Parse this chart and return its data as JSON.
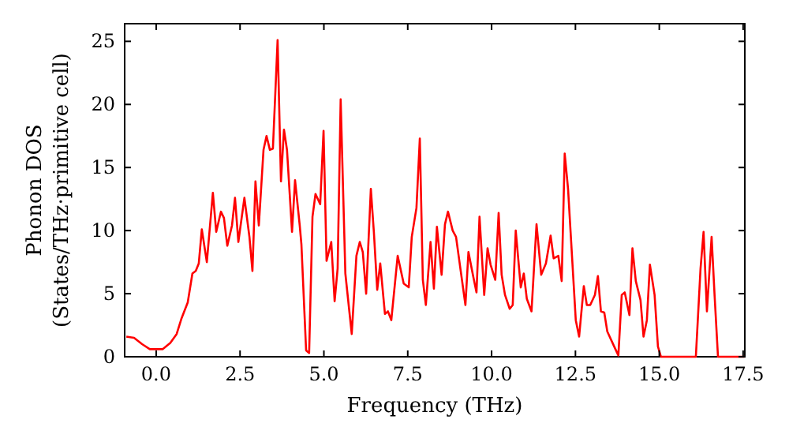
{
  "chart_data": {
    "type": "line",
    "xlabel": "Frequency (THz)",
    "ylabel": "Phonon DOS\n(States/THz·primitive cell)",
    "xlim": [
      -0.94,
      17.55
    ],
    "ylim": [
      0,
      26.4
    ],
    "xticks": [
      {
        "value": 0,
        "label": "0.0"
      },
      {
        "value": 2.5,
        "label": "2.5"
      },
      {
        "value": 5,
        "label": "5.0"
      },
      {
        "value": 7.5,
        "label": "7.5"
      },
      {
        "value": 10,
        "label": "10.0"
      },
      {
        "value": 12.5,
        "label": "12.5"
      },
      {
        "value": 15,
        "label": "15.0"
      },
      {
        "value": 17.5,
        "label": "17.5"
      }
    ],
    "yticks": [
      0,
      5,
      10,
      15,
      20,
      25
    ],
    "grid": false,
    "marker": "none",
    "line_style": "solid",
    "series": [
      {
        "color": "#ff0000",
        "x": [
          -0.89,
          -0.66,
          -0.42,
          -0.19,
          0.19,
          0.42,
          0.61,
          0.75,
          0.94,
          1.08,
          1.18,
          1.27,
          1.36,
          1.51,
          1.69,
          1.79,
          1.93,
          2.02,
          2.12,
          2.26,
          2.35,
          2.45,
          2.63,
          2.78,
          2.87,
          2.96,
          3.06,
          3.2,
          3.29,
          3.39,
          3.48,
          3.62,
          3.72,
          3.81,
          3.9,
          4.05,
          4.14,
          4.28,
          4.33,
          4.47,
          4.56,
          4.66,
          4.75,
          4.89,
          4.99,
          5.08,
          5.22,
          5.32,
          5.41,
          5.5,
          5.64,
          5.83,
          5.97,
          6.07,
          6.16,
          6.26,
          6.4,
          6.49,
          6.59,
          6.68,
          6.82,
          6.91,
          7.01,
          7.2,
          7.38,
          7.53,
          7.62,
          7.76,
          7.86,
          7.95,
          8.04,
          8.18,
          8.28,
          8.37,
          8.51,
          8.61,
          8.7,
          8.84,
          8.94,
          9.08,
          9.22,
          9.31,
          9.45,
          9.55,
          9.64,
          9.78,
          9.88,
          9.97,
          10.11,
          10.21,
          10.3,
          10.4,
          10.54,
          10.63,
          10.72,
          10.87,
          10.96,
          11.05,
          11.19,
          11.34,
          11.48,
          11.62,
          11.76,
          11.85,
          11.99,
          12.09,
          12.18,
          12.28,
          12.51,
          12.61,
          12.75,
          12.84,
          12.94,
          13.08,
          13.17,
          13.26,
          13.36,
          13.45,
          13.64,
          13.78,
          13.88,
          13.97,
          14.11,
          14.2,
          14.3,
          14.44,
          14.53,
          14.63,
          14.72,
          14.86,
          14.96,
          15.05,
          16.09,
          16.23,
          16.32,
          16.42,
          16.56,
          16.65,
          16.75,
          17.54
        ],
        "values": [
          1.6,
          1.5,
          1.0,
          0.6,
          0.6,
          1.1,
          1.8,
          3.0,
          4.3,
          6.6,
          6.8,
          7.4,
          10.1,
          7.5,
          13.0,
          9.9,
          11.5,
          11.0,
          8.8,
          10.4,
          12.6,
          9.1,
          12.6,
          9.5,
          6.8,
          13.9,
          10.4,
          16.4,
          17.5,
          16.4,
          16.5,
          25.1,
          13.9,
          18.0,
          16.4,
          9.9,
          14.0,
          10.4,
          8.9,
          0.5,
          0.3,
          11.1,
          12.9,
          12.1,
          17.9,
          7.6,
          9.1,
          4.4,
          7.0,
          20.4,
          6.6,
          1.8,
          8.0,
          9.1,
          8.3,
          5.0,
          13.3,
          9.9,
          5.3,
          7.4,
          3.4,
          3.6,
          2.9,
          8.0,
          5.8,
          5.5,
          9.5,
          11.8,
          17.3,
          6.1,
          4.1,
          9.1,
          5.4,
          10.3,
          6.5,
          10.5,
          11.5,
          10.0,
          9.5,
          6.8,
          4.1,
          8.3,
          6.4,
          5.1,
          11.1,
          4.9,
          8.6,
          7.3,
          6.1,
          11.4,
          6.5,
          4.9,
          3.8,
          4.1,
          10.0,
          5.5,
          6.6,
          4.6,
          3.6,
          10.5,
          6.5,
          7.4,
          9.6,
          7.8,
          8.0,
          6.0,
          16.1,
          13.3,
          2.9,
          1.6,
          5.6,
          4.1,
          4.1,
          4.9,
          6.4,
          3.6,
          3.5,
          2.0,
          0.9,
          0.1,
          4.9,
          5.1,
          3.3,
          8.6,
          6.0,
          4.5,
          1.6,
          2.9,
          7.3,
          4.9,
          0.8,
          0,
          0,
          7.0,
          9.9,
          3.6,
          9.5,
          4.8,
          0,
          0
        ]
      }
    ]
  }
}
